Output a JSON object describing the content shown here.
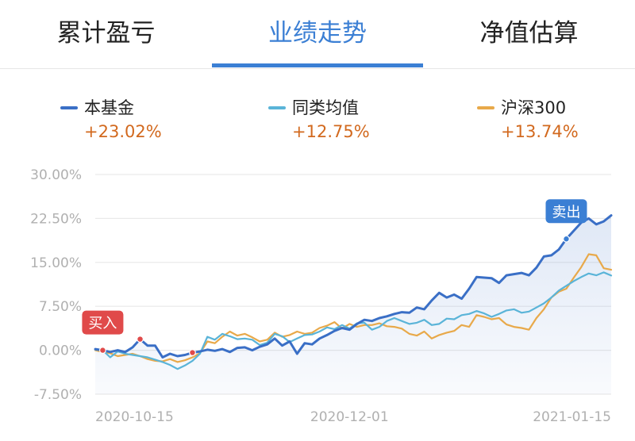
{
  "tabs": [
    {
      "label": "累计盈亏",
      "active": false
    },
    {
      "label": "业绩走势",
      "active": true
    },
    {
      "label": "净值估算",
      "active": false
    }
  ],
  "colors": {
    "accent": "#3b7fd4",
    "fund": "#3a6fc6",
    "peer": "#5ab4d8",
    "index": "#e8a94a",
    "gain": "#d2691e",
    "buy_badge": "#e04a4a",
    "sell_badge": "#3b7fd4"
  },
  "legend": [
    {
      "name": "本基金",
      "value": "+23.02%",
      "color": "#3a6fc6"
    },
    {
      "name": "同类均值",
      "value": "+12.75%",
      "color": "#5ab4d8"
    },
    {
      "name": "沪深300",
      "value": "+13.74%",
      "color": "#e8a94a"
    }
  ],
  "chart_data": {
    "type": "line",
    "ylim": [
      -7.5,
      30
    ],
    "y_ticks": [
      30,
      22.5,
      15,
      7.5,
      0,
      -7.5
    ],
    "y_tick_labels": [
      "30.00%",
      "22.50%",
      "15.00%",
      "7.50%",
      "0.00%",
      "-7.50%"
    ],
    "x_tick_labels": [
      "2020-10-15",
      "2020-12-01",
      "2021-01-15"
    ],
    "x_tick_index": [
      0,
      34,
      68
    ],
    "grid": true,
    "series": [
      {
        "name": "本基金",
        "color": "#3a6fc6",
        "fill": true,
        "values": [
          0.2,
          0.0,
          -0.3,
          0.0,
          -0.3,
          0.5,
          1.9,
          0.8,
          0.8,
          -1.2,
          -0.6,
          -1.0,
          -0.8,
          -0.4,
          -0.2,
          0.1,
          -0.1,
          0.2,
          -0.3,
          0.4,
          0.5,
          0.0,
          0.6,
          1.0,
          2.0,
          0.8,
          1.5,
          -0.6,
          1.2,
          1.0,
          2.0,
          2.6,
          3.3,
          3.8,
          3.5,
          4.5,
          5.2,
          5.0,
          5.5,
          5.8,
          6.2,
          6.5,
          6.4,
          7.3,
          7.0,
          8.5,
          9.8,
          9.0,
          9.5,
          8.8,
          10.5,
          12.5,
          12.4,
          12.3,
          11.5,
          12.8,
          13.0,
          13.2,
          12.8,
          14.1,
          16.0,
          16.2,
          17.2,
          19.0,
          20.4,
          21.8,
          22.5,
          21.5,
          22.0,
          23.02
        ],
        "markers": [
          {
            "index": 1,
            "label": "买入"
          },
          {
            "index": 6
          },
          {
            "index": 13
          },
          {
            "index": 63,
            "label": "卖出"
          }
        ]
      },
      {
        "name": "同类均值",
        "color": "#5ab4d8",
        "fill": false,
        "values": [
          0.1,
          0.0,
          -1.2,
          -0.2,
          -0.6,
          -0.8,
          -1.0,
          -1.2,
          -1.6,
          -2.0,
          -2.5,
          -3.2,
          -2.6,
          -1.8,
          -0.6,
          2.3,
          1.8,
          2.8,
          2.4,
          1.9,
          2.0,
          1.8,
          0.9,
          1.3,
          2.8,
          2.4,
          1.4,
          2.0,
          2.6,
          2.7,
          3.2,
          3.9,
          3.6,
          4.3,
          3.7,
          4.6,
          4.7,
          3.5,
          4.0,
          5.0,
          5.5,
          5.0,
          4.5,
          4.7,
          5.2,
          4.3,
          4.5,
          5.4,
          5.3,
          6.0,
          6.2,
          6.7,
          6.3,
          5.7,
          6.2,
          6.8,
          7.0,
          6.4,
          6.6,
          7.3,
          8.0,
          9.0,
          10.2,
          11.0,
          11.8,
          12.5,
          13.1,
          12.8,
          13.3,
          12.75
        ]
      },
      {
        "name": "沪深300",
        "color": "#e8a94a",
        "fill": false,
        "values": [
          0.0,
          -0.3,
          -0.5,
          -1.0,
          -0.8,
          -0.6,
          -1.0,
          -1.5,
          -1.8,
          -1.9,
          -1.5,
          -2.0,
          -1.7,
          -1.2,
          -0.5,
          1.5,
          1.2,
          2.3,
          3.2,
          2.5,
          2.8,
          2.2,
          1.5,
          1.8,
          3.0,
          2.3,
          2.6,
          3.2,
          2.8,
          3.0,
          3.8,
          4.2,
          4.8,
          3.7,
          4.5,
          4.0,
          4.3,
          4.3,
          4.6,
          4.1,
          4.0,
          3.7,
          2.8,
          2.5,
          3.2,
          2.0,
          2.6,
          3.0,
          3.3,
          4.3,
          4.0,
          6.0,
          5.7,
          5.3,
          5.5,
          4.4,
          4.0,
          3.8,
          3.5,
          5.5,
          7.0,
          9.0,
          10.0,
          10.5,
          12.4,
          14.2,
          16.4,
          16.2,
          14.0,
          13.74
        ]
      }
    ]
  }
}
